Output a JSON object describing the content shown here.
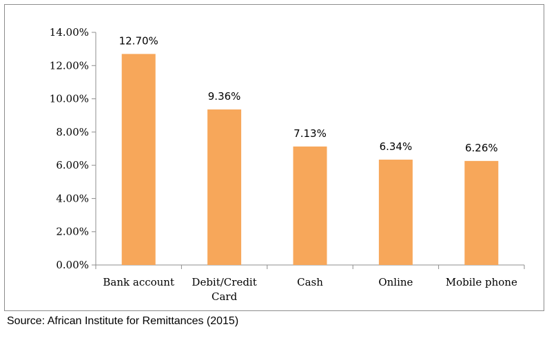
{
  "chart_data": {
    "type": "bar",
    "categories": [
      "Bank account",
      "Debit/Credit Card",
      "Cash",
      "Online",
      "Mobile phone"
    ],
    "category_lines": [
      [
        "Bank account"
      ],
      [
        "Debit/Credit",
        "Card"
      ],
      [
        "Cash"
      ],
      [
        "Online"
      ],
      [
        "Mobile phone"
      ]
    ],
    "values": [
      12.7,
      9.36,
      7.13,
      6.34,
      6.26
    ],
    "data_labels": [
      "12.70%",
      "9.36%",
      "7.13%",
      "6.34%",
      "6.26%"
    ],
    "y_ticks": [
      0,
      2,
      4,
      6,
      8,
      10,
      12,
      14
    ],
    "y_tick_labels": [
      "0.00%",
      "2.00%",
      "4.00%",
      "6.00%",
      "8.00%",
      "10.00%",
      "12.00%",
      "14.00%"
    ],
    "ylim": [
      0,
      14
    ],
    "bar_color": "#F7A75A",
    "axis_color": "#8c8c8c",
    "grid": false,
    "legend": "none",
    "title": "",
    "xlabel": "",
    "ylabel": ""
  },
  "source": "Source: African Institute for Remittances (2015)"
}
